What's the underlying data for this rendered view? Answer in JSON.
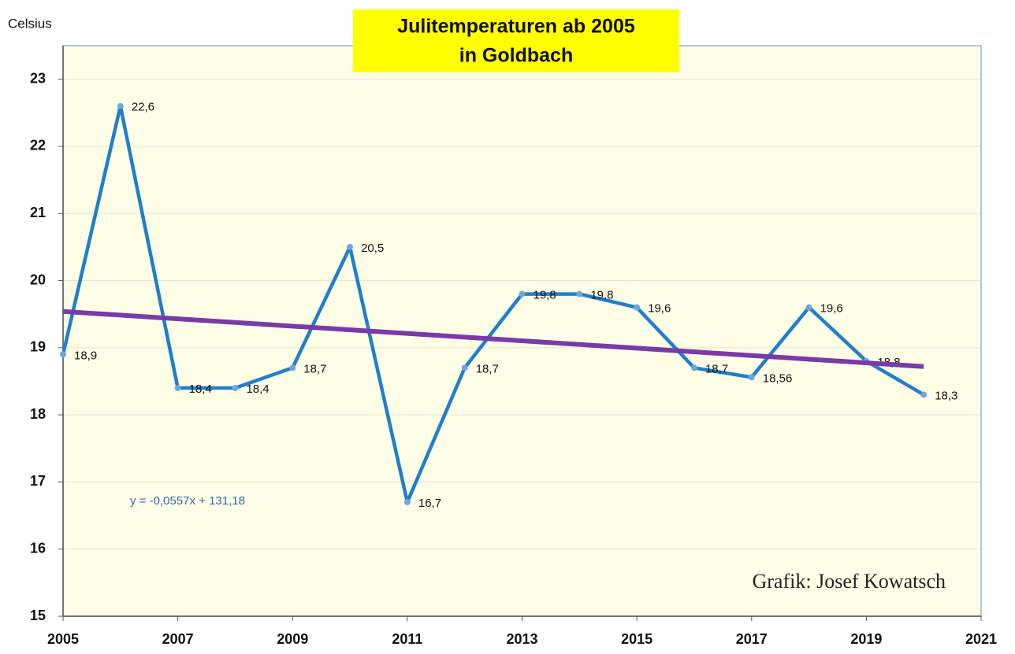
{
  "chart_data": {
    "type": "line",
    "title": [
      "Julitemperaturen ab 2005",
      "in Goldbach"
    ],
    "ylabel": "Celsius",
    "annotations": [
      "y = -0,0557x + 131,18",
      "Grafik: Josef Kowatsch"
    ],
    "x": [
      2005,
      2006,
      2007,
      2008,
      2009,
      2010,
      2011,
      2012,
      2013,
      2014,
      2015,
      2016,
      2017,
      2018,
      2019,
      2020
    ],
    "series": [
      {
        "color": "#1f7fc9",
        "values": [
          18.9,
          22.6,
          18.4,
          18.4,
          18.7,
          20.5,
          16.7,
          18.7,
          19.8,
          19.8,
          19.6,
          18.7,
          18.56,
          19.6,
          18.8,
          18.3
        ],
        "value_labels": [
          "18,9",
          "22,6",
          "18,4",
          "18,4",
          "18,7",
          "20,5",
          "16,7",
          "18,7",
          "19,8",
          "19,8",
          "19,6",
          "18,7",
          "18,56",
          "19,6",
          "18,8",
          "18,3"
        ]
      },
      {
        "color": "#7a3aa8",
        "x": [
          2005,
          2020
        ],
        "values": [
          19.54,
          18.72
        ]
      }
    ],
    "xlim": [
      2005,
      2021
    ],
    "xticks": [
      2005,
      2007,
      2009,
      2011,
      2013,
      2015,
      2017,
      2019,
      2021
    ],
    "ylim": [
      15,
      23.5
    ],
    "yticks": [
      15,
      16,
      17,
      18,
      19,
      20,
      21,
      22,
      23
    ],
    "grid": true
  }
}
